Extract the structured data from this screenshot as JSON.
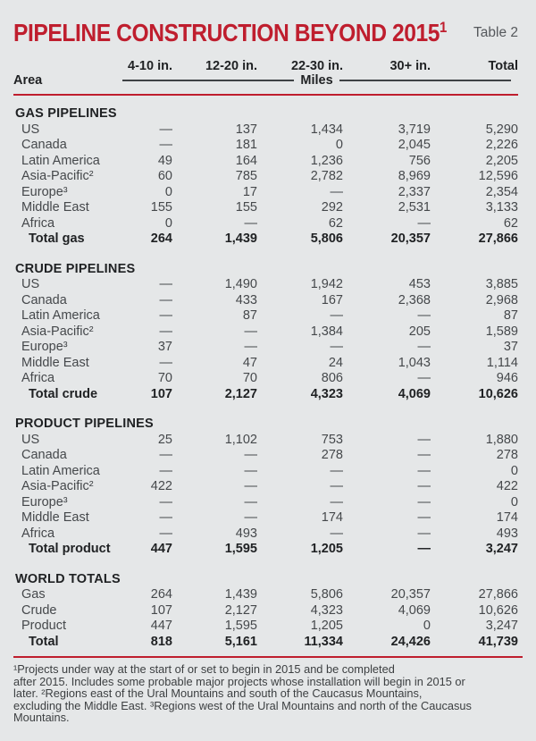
{
  "page": {
    "title": "PIPELINE CONSTRUCTION BEYOND 2015",
    "title_superscript": "1",
    "table_label": "Table 2"
  },
  "colors": {
    "accent_red": "#bf1e2e",
    "background": "#e5e7e8",
    "text_dark": "#1f2123",
    "text_body": "#45484b",
    "text_gray": "#55585c",
    "rule_dark": "#3f4245",
    "text_footnote": "#3c3f41"
  },
  "chart_data": {
    "type": "table",
    "title": "Pipeline construction beyond 2015 (Table 2)",
    "unit_label": "Miles",
    "area_header": "Area",
    "column_headers": [
      "4-10 in.",
      "12-20 in.",
      "22-30 in.",
      "30+ in.",
      "Total"
    ],
    "empty_cell_symbol": "—",
    "sections": [
      {
        "name": "GAS PIPELINES",
        "rows": [
          {
            "label": "US",
            "values": [
              null,
              137,
              1434,
              3719,
              5290
            ]
          },
          {
            "label": "Canada",
            "values": [
              null,
              181,
              0,
              2045,
              2226
            ]
          },
          {
            "label": "Latin America",
            "values": [
              49,
              164,
              1236,
              756,
              2205
            ]
          },
          {
            "label": "Asia-Pacific²",
            "values": [
              60,
              785,
              2782,
              8969,
              12596
            ]
          },
          {
            "label": "Europe³",
            "values": [
              0,
              17,
              null,
              2337,
              2354
            ]
          },
          {
            "label": "Middle East",
            "values": [
              155,
              155,
              292,
              2531,
              3133
            ]
          },
          {
            "label": "Africa",
            "values": [
              0,
              null,
              62,
              null,
              62
            ]
          },
          {
            "label": "Total gas",
            "values": [
              264,
              1439,
              5806,
              20357,
              27866
            ],
            "is_total": true
          }
        ]
      },
      {
        "name": "CRUDE PIPELINES",
        "rows": [
          {
            "label": "US",
            "values": [
              null,
              1490,
              1942,
              453,
              3885
            ]
          },
          {
            "label": "Canada",
            "values": [
              null,
              433,
              167,
              2368,
              2968
            ]
          },
          {
            "label": "Latin America",
            "values": [
              null,
              87,
              null,
              null,
              87
            ]
          },
          {
            "label": "Asia-Pacific²",
            "values": [
              null,
              null,
              1384,
              205,
              1589
            ]
          },
          {
            "label": "Europe³",
            "values": [
              37,
              null,
              null,
              null,
              37
            ]
          },
          {
            "label": "Middle East",
            "values": [
              null,
              47,
              24,
              1043,
              1114
            ]
          },
          {
            "label": "Africa",
            "values": [
              70,
              70,
              806,
              null,
              946
            ]
          },
          {
            "label": "Total crude",
            "values": [
              107,
              2127,
              4323,
              4069,
              10626
            ],
            "is_total": true
          }
        ]
      },
      {
        "name": "PRODUCT PIPELINES",
        "rows": [
          {
            "label": "US",
            "values": [
              25,
              1102,
              753,
              null,
              1880
            ]
          },
          {
            "label": "Canada",
            "values": [
              null,
              null,
              278,
              null,
              278
            ]
          },
          {
            "label": "Latin America",
            "values": [
              null,
              null,
              null,
              null,
              0
            ]
          },
          {
            "label": "Asia-Pacific²",
            "values": [
              422,
              null,
              null,
              null,
              422
            ]
          },
          {
            "label": "Europe³",
            "values": [
              null,
              null,
              null,
              null,
              0
            ]
          },
          {
            "label": "Middle East",
            "values": [
              null,
              null,
              174,
              null,
              174
            ]
          },
          {
            "label": "Africa",
            "values": [
              null,
              493,
              null,
              null,
              493
            ]
          },
          {
            "label": "Total product",
            "values": [
              447,
              1595,
              1205,
              null,
              3247
            ],
            "is_total": true
          }
        ]
      },
      {
        "name": "WORLD TOTALS",
        "rows": [
          {
            "label": "Gas",
            "values": [
              264,
              1439,
              5806,
              20357,
              27866
            ]
          },
          {
            "label": "Crude",
            "values": [
              107,
              2127,
              4323,
              4069,
              10626
            ]
          },
          {
            "label": "Product",
            "values": [
              447,
              1595,
              1205,
              0,
              3247
            ]
          },
          {
            "label": "Total",
            "values": [
              818,
              5161,
              11334,
              24426,
              41739
            ],
            "is_total": true
          }
        ]
      }
    ]
  },
  "footnote_lines": [
    "¹Projects under way at the start of or set to begin in 2015 and be completed",
    "after 2015. Includes some probable major projects whose installation will begin in 2015 or",
    "later. ²Regions east of the Ural Mountains and south of the Caucasus Mountains,",
    "excluding the Middle East. ³Regions west of the Ural Mountains and north of the Caucasus",
    "Mountains."
  ]
}
